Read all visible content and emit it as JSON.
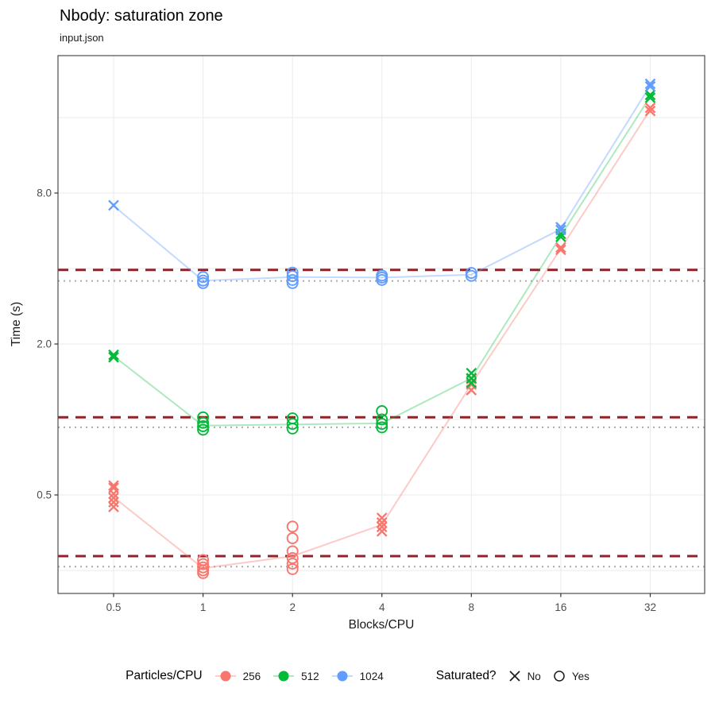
{
  "header": {
    "title": "Nbody: saturation zone",
    "subtitle": "input.json"
  },
  "chart_data": {
    "type": "scatter",
    "title": "Nbody: saturation zone",
    "subtitle": "input.json",
    "xlabel": "Blocks/CPU",
    "ylabel": "Time (s)",
    "x_scale": "log2",
    "y_scale": "log2",
    "x_ticks": [
      0.5,
      1,
      2,
      4,
      8,
      16,
      32
    ],
    "x_tick_labels": [
      "0.5",
      "1",
      "2",
      "4",
      "8",
      "16",
      "32"
    ],
    "y_ticks": [
      8.0,
      2.0,
      0.5
    ],
    "y_tick_labels": [
      "8.0",
      "2.0",
      "0.5"
    ],
    "y_gridlines": [
      0.25,
      0.5,
      1,
      2,
      4,
      8,
      16
    ],
    "xlim": [
      0.32,
      45
    ],
    "ylim": [
      0.2,
      28
    ],
    "grid": true,
    "legend_position": "bottom",
    "colors": {
      "grid": "#ebebeb",
      "panel_border": "#4d4d4d",
      "tick": "#333333",
      "tick_label": "#4d4d4d",
      "threshold_dashed": "#8f2329",
      "baseline_dotted": "#aaaaaa"
    },
    "point_format": [
      "blocks_per_cpu",
      "time_s",
      "saturated"
    ],
    "series": [
      {
        "name": "256",
        "color": "#F8766D",
        "line_color": "rgba(248,118,109,0.38)",
        "threshold_dashed": 0.285,
        "baseline_dotted": 0.259,
        "median_line": [
          [
            0.5,
            0.49
          ],
          [
            1,
            0.255
          ],
          [
            2,
            0.285
          ],
          [
            4,
            0.38
          ],
          [
            8,
            1.38
          ],
          [
            16,
            4.8
          ],
          [
            32,
            17.2
          ]
        ],
        "points": [
          [
            0.5,
            0.545,
            "no"
          ],
          [
            0.5,
            0.533,
            "no"
          ],
          [
            0.5,
            0.505,
            "no"
          ],
          [
            0.5,
            0.487,
            "no"
          ],
          [
            0.5,
            0.468,
            "no"
          ],
          [
            0.5,
            0.448,
            "no"
          ],
          [
            1,
            0.275,
            "yes"
          ],
          [
            1,
            0.265,
            "yes"
          ],
          [
            1,
            0.257,
            "yes"
          ],
          [
            1,
            0.25,
            "yes"
          ],
          [
            1,
            0.244,
            "yes"
          ],
          [
            2,
            0.374,
            "yes"
          ],
          [
            2,
            0.336,
            "yes"
          ],
          [
            2,
            0.298,
            "yes"
          ],
          [
            2,
            0.28,
            "yes"
          ],
          [
            2,
            0.266,
            "yes"
          ],
          [
            2,
            0.253,
            "yes"
          ],
          [
            4,
            0.405,
            "no"
          ],
          [
            4,
            0.388,
            "no"
          ],
          [
            4,
            0.373,
            "no"
          ],
          [
            4,
            0.358,
            "no"
          ],
          [
            8,
            1.45,
            "no"
          ],
          [
            8,
            1.38,
            "no"
          ],
          [
            8,
            1.31,
            "no"
          ],
          [
            16,
            4.85,
            "no"
          ],
          [
            16,
            4.75,
            "no"
          ],
          [
            32,
            17.5,
            "no"
          ],
          [
            32,
            17.0,
            "no"
          ]
        ]
      },
      {
        "name": "512",
        "color": "#00BA38",
        "line_color": "rgba(0,186,56,0.32)",
        "threshold_dashed": 1.02,
        "baseline_dotted": 0.93,
        "median_line": [
          [
            0.5,
            1.79
          ],
          [
            1,
            0.945
          ],
          [
            2,
            0.955
          ],
          [
            4,
            0.965
          ],
          [
            8,
            1.46
          ],
          [
            16,
            5.4
          ],
          [
            32,
            19.4
          ]
        ],
        "points": [
          [
            0.5,
            1.81,
            "no"
          ],
          [
            0.5,
            1.77,
            "no"
          ],
          [
            1,
            1.02,
            "yes"
          ],
          [
            1,
            0.97,
            "yes"
          ],
          [
            1,
            0.94,
            "yes"
          ],
          [
            1,
            0.91,
            "yes"
          ],
          [
            2,
            1.01,
            "yes"
          ],
          [
            2,
            0.96,
            "yes"
          ],
          [
            2,
            0.92,
            "yes"
          ],
          [
            4,
            1.08,
            "yes"
          ],
          [
            4,
            1.0,
            "yes"
          ],
          [
            4,
            0.96,
            "yes"
          ],
          [
            4,
            0.93,
            "yes"
          ],
          [
            8,
            1.53,
            "no"
          ],
          [
            8,
            1.46,
            "no"
          ],
          [
            8,
            1.4,
            "no"
          ],
          [
            16,
            5.5,
            "no"
          ],
          [
            16,
            5.35,
            "no"
          ],
          [
            32,
            19.7,
            "no"
          ],
          [
            32,
            19.2,
            "no"
          ]
        ]
      },
      {
        "name": "1024",
        "color": "#619CFF",
        "line_color": "rgba(97,156,255,0.38)",
        "threshold_dashed": 3.95,
        "baseline_dotted": 3.57,
        "median_line": [
          [
            0.5,
            7.12
          ],
          [
            1,
            3.58
          ],
          [
            2,
            3.7
          ],
          [
            4,
            3.68
          ],
          [
            8,
            3.78
          ],
          [
            16,
            5.75
          ],
          [
            32,
            21.5
          ]
        ],
        "points": [
          [
            0.5,
            7.15,
            "no"
          ],
          [
            1,
            3.7,
            "yes"
          ],
          [
            1,
            3.58,
            "yes"
          ],
          [
            1,
            3.5,
            "yes"
          ],
          [
            2,
            3.85,
            "yes"
          ],
          [
            2,
            3.73,
            "yes"
          ],
          [
            2,
            3.6,
            "yes"
          ],
          [
            2,
            3.5,
            "yes"
          ],
          [
            4,
            3.75,
            "yes"
          ],
          [
            4,
            3.68,
            "yes"
          ],
          [
            4,
            3.6,
            "yes"
          ],
          [
            8,
            3.84,
            "yes"
          ],
          [
            8,
            3.74,
            "yes"
          ],
          [
            16,
            5.85,
            "no"
          ],
          [
            16,
            5.7,
            "no"
          ],
          [
            32,
            21.8,
            "no"
          ],
          [
            32,
            21.3,
            "no"
          ]
        ]
      }
    ],
    "legend": {
      "color_title": "Particles/CPU",
      "shape_title": "Saturated?",
      "shape_items": [
        {
          "shape": "x",
          "label": "No"
        },
        {
          "shape": "circle",
          "label": "Yes"
        }
      ]
    }
  }
}
